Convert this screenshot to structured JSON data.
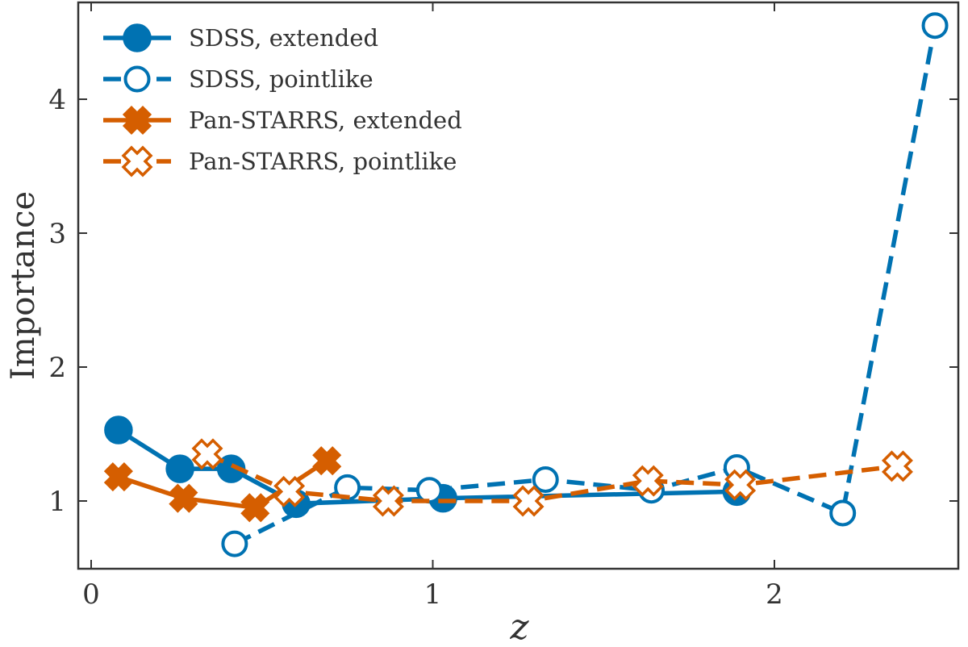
{
  "chart_data": {
    "type": "line",
    "title": "",
    "xlabel": "z",
    "ylabel": "Importance",
    "xlim": [
      -0.05,
      2.6
    ],
    "ylim": [
      0.5,
      4.75
    ],
    "xticks": [
      0,
      1,
      2
    ],
    "xtick_labels": [
      "0",
      "1",
      "2"
    ],
    "yticks": [
      1,
      2,
      3,
      4
    ],
    "ytick_labels": [
      "1",
      "2",
      "3",
      "4"
    ],
    "grid": false,
    "legend_position": "top-left",
    "colors": {
      "blue": "#0072b2",
      "orange": "#d55e00"
    },
    "series": [
      {
        "name": "SDSS, extended",
        "color": "#0072b2",
        "marker": "circle",
        "filled": true,
        "line": "solid",
        "x": [
          0.08,
          0.26,
          0.41,
          0.6,
          1.03,
          1.89
        ],
        "y": [
          1.53,
          1.24,
          1.24,
          0.98,
          1.02,
          1.07
        ]
      },
      {
        "name": "SDSS, pointlike",
        "color": "#0072b2",
        "marker": "circle",
        "filled": false,
        "line": "dashed",
        "x": [
          0.42,
          0.75,
          0.99,
          1.33,
          1.64,
          1.89,
          2.2,
          2.47
        ],
        "y": [
          0.68,
          1.1,
          1.08,
          1.16,
          1.08,
          1.25,
          0.91,
          4.55
        ]
      },
      {
        "name": "Pan-STARRS, extended",
        "color": "#d55e00",
        "marker": "x",
        "filled": true,
        "line": "solid",
        "x": [
          0.08,
          0.27,
          0.48,
          0.69
        ],
        "y": [
          1.18,
          1.02,
          0.95,
          1.3
        ]
      },
      {
        "name": "Pan-STARRS, pointlike",
        "color": "#d55e00",
        "marker": "x",
        "filled": false,
        "line": "dashed",
        "x": [
          0.34,
          0.58,
          0.87,
          1.28,
          1.63,
          1.9,
          2.36
        ],
        "y": [
          1.35,
          1.07,
          1.0,
          1.0,
          1.15,
          1.12,
          1.26
        ]
      }
    ]
  }
}
